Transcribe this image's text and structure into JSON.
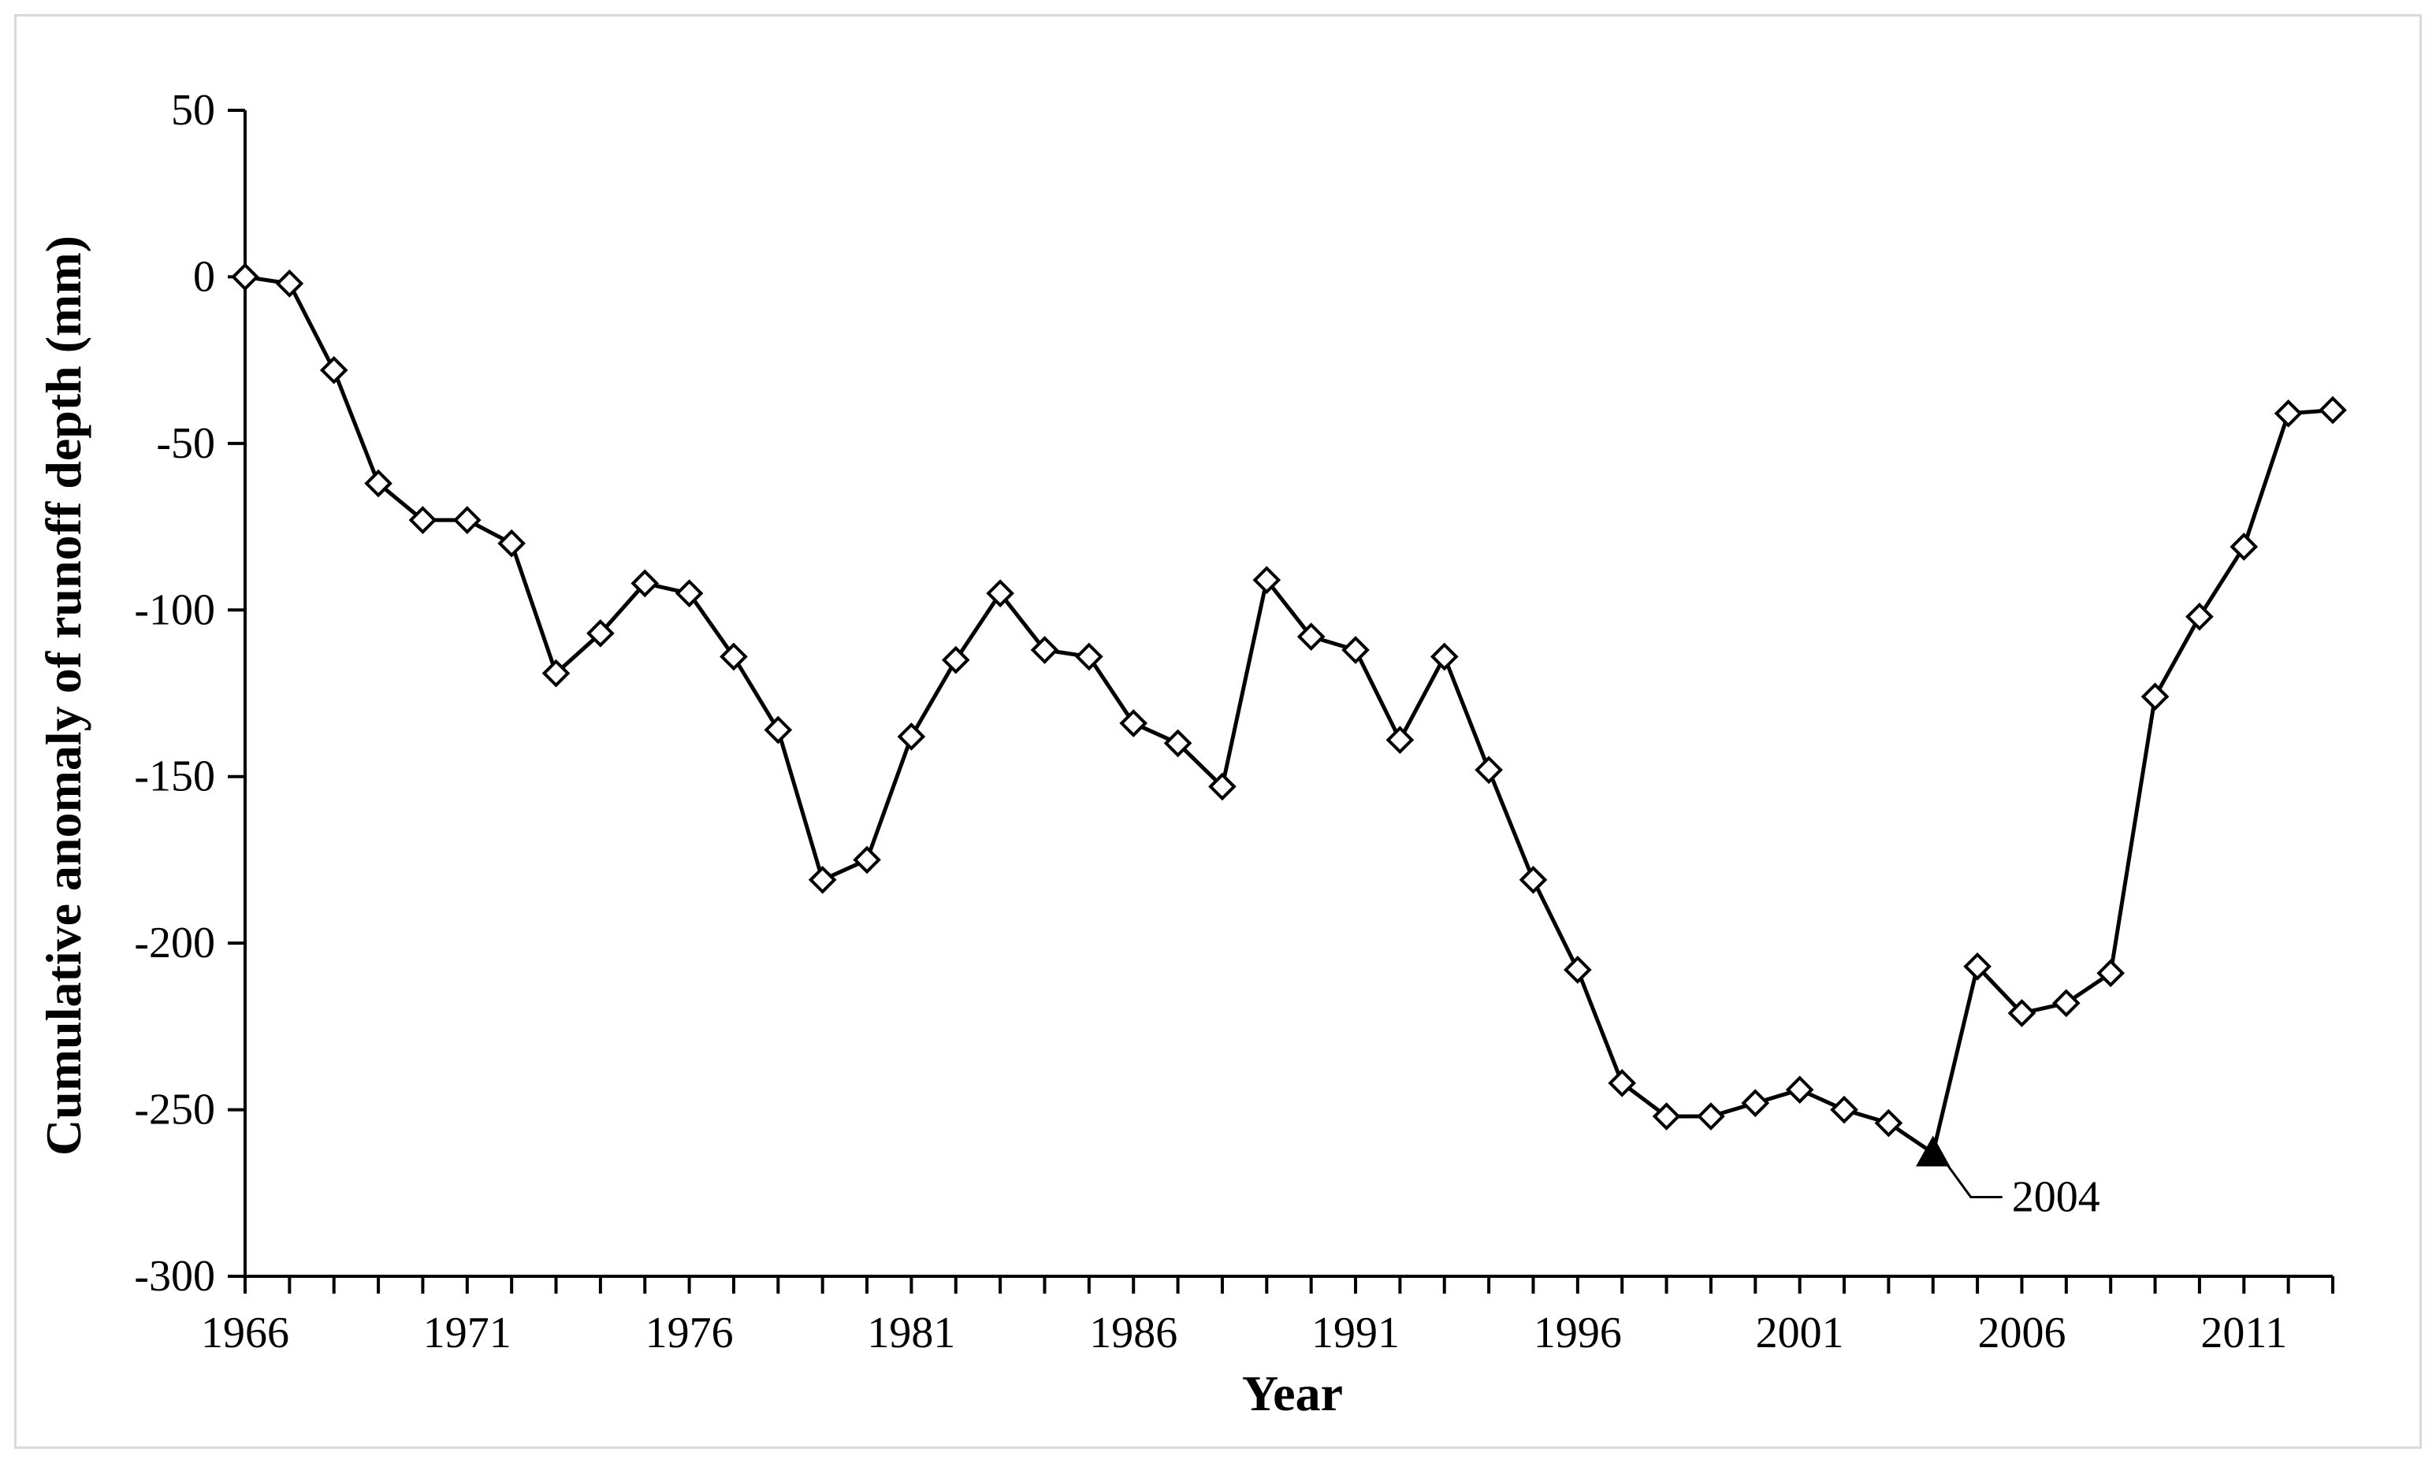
{
  "chart_data": {
    "type": "line",
    "xlabel": "Year",
    "ylabel": "Cumulative anomaly of runoff depth (mm)",
    "xlim": [
      1966,
      2013
    ],
    "ylim": [
      -300,
      50
    ],
    "x_ticks": [
      1966,
      1971,
      1976,
      1981,
      1986,
      1991,
      1996,
      2001,
      2006,
      2011
    ],
    "y_ticks": [
      50,
      0,
      -50,
      -100,
      -150,
      -200,
      -250,
      -300
    ],
    "grid": false,
    "line_color": "#000000",
    "marker": "diamond-open",
    "series": [
      {
        "x": [
          1966,
          1967,
          1968,
          1969,
          1970,
          1971,
          1972,
          1973,
          1974,
          1975,
          1976,
          1977,
          1978,
          1979,
          1980,
          1981,
          1982,
          1983,
          1984,
          1985,
          1986,
          1987,
          1988,
          1989,
          1990,
          1991,
          1992,
          1993,
          1994,
          1995,
          1996,
          1997,
          1998,
          1999,
          2000,
          2001,
          2002,
          2003,
          2004,
          2005,
          2006,
          2007,
          2008,
          2009,
          2010,
          2011,
          2012,
          2013
        ],
        "values": [
          0,
          -2,
          -28,
          -62,
          -73,
          -73,
          -80,
          -119,
          -107,
          -92,
          -95,
          -114,
          -136,
          -181,
          -175,
          -138,
          -115,
          -95,
          -112,
          -114,
          -134,
          -140,
          -153,
          -91,
          -108,
          -112,
          -139,
          -114,
          -148,
          -181,
          -208,
          -242,
          -252,
          -252,
          -248,
          -244,
          -250,
          -254,
          -263,
          -207,
          -221,
          -218,
          -209,
          -126,
          -102,
          -81,
          -41,
          -40
        ]
      }
    ],
    "annotations": [
      {
        "text": "2004",
        "x": 2004,
        "y": -263,
        "marker": "filled-triangle"
      }
    ]
  }
}
